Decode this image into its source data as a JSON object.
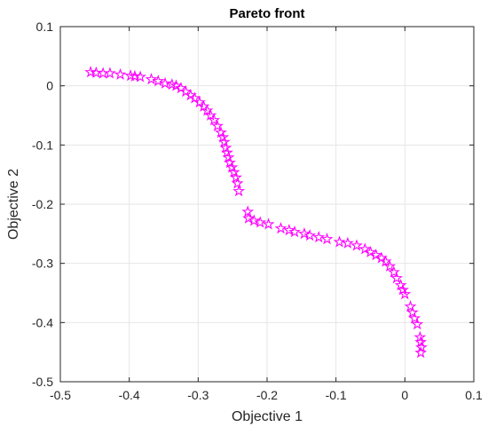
{
  "chart_data": {
    "type": "scatter",
    "title": "Pareto front",
    "xlabel": "Objective 1",
    "ylabel": "Objective 2",
    "xlim": [
      -0.5,
      0.1
    ],
    "ylim": [
      -0.5,
      0.1
    ],
    "xticks": [
      -0.5,
      -0.4,
      -0.3,
      -0.2,
      -0.1,
      0,
      0.1
    ],
    "yticks": [
      -0.5,
      -0.4,
      -0.3,
      -0.2,
      -0.1,
      0,
      0.1
    ],
    "xtick_labels": [
      "-0.5",
      "-0.4",
      "-0.3",
      "-0.2",
      "-0.1",
      "0",
      "0.1"
    ],
    "ytick_labels": [
      "-0.5",
      "-0.4",
      "-0.3",
      "-0.2",
      "-0.1",
      "0",
      "0.1"
    ],
    "grid": true,
    "marker": "pentagram",
    "marker_color": "#ff00ff",
    "points": [
      [
        -0.456,
        0.023
      ],
      [
        -0.448,
        0.022
      ],
      [
        -0.438,
        0.021
      ],
      [
        -0.428,
        0.021
      ],
      [
        -0.413,
        0.019
      ],
      [
        -0.398,
        0.017
      ],
      [
        -0.392,
        0.016
      ],
      [
        -0.384,
        0.015
      ],
      [
        -0.368,
        0.011
      ],
      [
        -0.358,
        0.008
      ],
      [
        -0.348,
        0.004
      ],
      [
        -0.338,
        0.002
      ],
      [
        -0.332,
        0.0
      ],
      [
        -0.325,
        -0.004
      ],
      [
        -0.318,
        -0.01
      ],
      [
        -0.311,
        -0.016
      ],
      [
        -0.305,
        -0.021
      ],
      [
        -0.298,
        -0.028
      ],
      [
        -0.292,
        -0.035
      ],
      [
        -0.287,
        -0.042
      ],
      [
        -0.282,
        -0.05
      ],
      [
        -0.277,
        -0.058
      ],
      [
        -0.272,
        -0.068
      ],
      [
        -0.267,
        -0.079
      ],
      [
        -0.264,
        -0.087
      ],
      [
        -0.262,
        -0.095
      ],
      [
        -0.26,
        -0.105
      ],
      [
        -0.258,
        -0.113
      ],
      [
        -0.256,
        -0.121
      ],
      [
        -0.254,
        -0.13
      ],
      [
        -0.251,
        -0.138
      ],
      [
        -0.248,
        -0.146
      ],
      [
        -0.245,
        -0.155
      ],
      [
        -0.243,
        -0.165
      ],
      [
        -0.241,
        -0.178
      ],
      [
        -0.228,
        -0.213
      ],
      [
        -0.227,
        -0.224
      ],
      [
        -0.219,
        -0.228
      ],
      [
        -0.21,
        -0.231
      ],
      [
        -0.198,
        -0.234
      ],
      [
        -0.18,
        -0.241
      ],
      [
        -0.168,
        -0.244
      ],
      [
        -0.16,
        -0.247
      ],
      [
        -0.146,
        -0.25
      ],
      [
        -0.138,
        -0.253
      ],
      [
        -0.125,
        -0.256
      ],
      [
        -0.113,
        -0.259
      ],
      [
        -0.095,
        -0.264
      ],
      [
        -0.083,
        -0.266
      ],
      [
        -0.07,
        -0.27
      ],
      [
        -0.058,
        -0.276
      ],
      [
        -0.05,
        -0.281
      ],
      [
        -0.042,
        -0.286
      ],
      [
        -0.034,
        -0.291
      ],
      [
        -0.028,
        -0.297
      ],
      [
        -0.022,
        -0.305
      ],
      [
        -0.016,
        -0.315
      ],
      [
        -0.012,
        -0.325
      ],
      [
        -0.006,
        -0.337
      ],
      [
        -0.003,
        -0.345
      ],
      [
        0.0,
        -0.352
      ],
      [
        0.008,
        -0.373
      ],
      [
        0.011,
        -0.383
      ],
      [
        0.014,
        -0.393
      ],
      [
        0.018,
        -0.403
      ],
      [
        0.022,
        -0.425
      ],
      [
        0.023,
        -0.433
      ],
      [
        0.024,
        -0.442
      ],
      [
        0.023,
        -0.451
      ]
    ]
  }
}
